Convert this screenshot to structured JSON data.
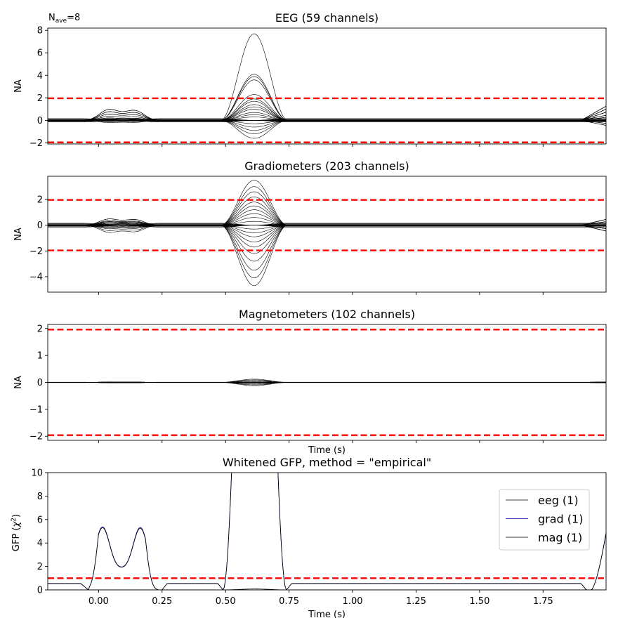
{
  "figure": {
    "nave_label": "N",
    "nave_subscript": "ave",
    "nave_value": "=8"
  },
  "chart_data": [
    {
      "type": "line",
      "title": "EEG (59 channels)",
      "ylabel": "NA",
      "xlim": [
        -0.2,
        1.998
      ],
      "ylim": [
        -2.1,
        8.2
      ],
      "yticks": [
        -2,
        0,
        2,
        4,
        6,
        8
      ],
      "ytick_labels": [
        "−2",
        "0",
        "2",
        "4",
        "6",
        "8"
      ],
      "xticks": [
        0,
        0.25,
        0.5,
        0.75,
        1.0,
        1.25,
        1.5,
        1.75
      ],
      "show_xtick_labels": false,
      "threshold_lines": [
        1.96,
        -1.96
      ],
      "threshold_color": "#ff0000",
      "trace_color": "#000000",
      "bump_peaks": [
        0.02,
        0.16,
        0.61,
        1.998
      ],
      "bump_amplitudes": [
        [
          1.4,
          1.1,
          0.8,
          0.5,
          0.3,
          0.2,
          0.15,
          0.1,
          0.05,
          -0.05,
          -0.1,
          -0.2,
          -0.3
        ],
        [
          7.7,
          4.1,
          3.9,
          3.6,
          2.3,
          1.9,
          1.7,
          1.4,
          1.2,
          1.0,
          0.7,
          0.5,
          0.3,
          -0.3,
          -0.6,
          -0.9,
          -1.2,
          -1.6
        ],
        [
          1.4,
          1.1,
          0.8,
          0.5,
          0.3,
          -0.3,
          -0.5
        ]
      ]
    },
    {
      "type": "line",
      "title": "Gradiometers (203 channels)",
      "ylabel": "NA",
      "xlim": [
        -0.2,
        1.998
      ],
      "ylim": [
        -5.2,
        3.8
      ],
      "yticks": [
        -4,
        -2,
        0,
        2
      ],
      "ytick_labels": [
        "−4",
        "−2",
        "0",
        "2"
      ],
      "xticks": [
        0,
        0.25,
        0.5,
        0.75,
        1.0,
        1.25,
        1.5,
        1.75
      ],
      "show_xtick_labels": false,
      "threshold_lines": [
        1.96,
        -1.96
      ],
      "threshold_color": "#ff0000",
      "trace_color": "#000000",
      "bump_amplitudes": [
        [
          0.7,
          0.5,
          0.4,
          0.3,
          0.2,
          0.1,
          -0.1,
          -0.2,
          -0.3,
          -0.4,
          -0.6,
          -0.8
        ],
        [
          3.5,
          3.0,
          2.6,
          2.2,
          1.8,
          1.5,
          1.2,
          0.9,
          0.6,
          0.3,
          -0.3,
          -0.6,
          -0.9,
          -1.3,
          -1.7,
          -2.2,
          -2.8,
          -3.5,
          -4.1,
          -4.7
        ],
        [
          0.5,
          0.3,
          -0.3,
          -0.5
        ]
      ]
    },
    {
      "type": "line",
      "title": "Magnetometers (102 channels)",
      "ylabel": "NA",
      "xlabel": "Time (s)",
      "xlim": [
        -0.2,
        1.998
      ],
      "ylim": [
        -2.15,
        2.15
      ],
      "yticks": [
        -2,
        -1,
        0,
        1,
        2
      ],
      "ytick_labels": [
        "−2",
        "−1",
        "0",
        "1",
        "2"
      ],
      "xticks": [
        0,
        0.25,
        0.5,
        0.75,
        1.0,
        1.25,
        1.5,
        1.75
      ],
      "show_xtick_labels": false,
      "threshold_lines": [
        1.96,
        -1.96
      ],
      "threshold_color": "#ff0000",
      "trace_color": "#000000",
      "bump_amplitudes": [
        [
          0.02,
          -0.02
        ],
        [
          0.12,
          0.09,
          0.06,
          0.03,
          -0.03,
          -0.06,
          -0.09,
          -0.12
        ],
        [
          0.02,
          -0.02
        ]
      ]
    },
    {
      "type": "line",
      "title": "Whitened GFP, method = \"empirical\"",
      "ylabel_main": "GFP (",
      "ylabel_sym": "χ",
      "ylabel_sup": "2",
      "ylabel_close": ")",
      "xlabel": "Time (s)",
      "xlim": [
        -0.2,
        1.998
      ],
      "ylim": [
        0,
        10
      ],
      "yticks": [
        0,
        2,
        4,
        6,
        8,
        10
      ],
      "ytick_labels": [
        "0",
        "2",
        "4",
        "6",
        "8",
        "10"
      ],
      "xticks": [
        0,
        0.25,
        0.5,
        0.75,
        1.0,
        1.25,
        1.5,
        1.75
      ],
      "xtick_labels": [
        "0.00",
        "0.25",
        "0.50",
        "0.75",
        "1.00",
        "1.25",
        "1.50",
        "1.75"
      ],
      "show_xtick_labels": true,
      "threshold_lines": [
        1.0
      ],
      "threshold_color": "#ff0000",
      "series": [
        {
          "name": "eeg (1)",
          "color": "#000000"
        },
        {
          "name": "grad (1)",
          "color": "#00008b"
        },
        {
          "name": "mag (1)",
          "color": "#000000"
        }
      ],
      "legend_position": "right",
      "gfp_baseline": 0.55,
      "gfp_first_peaks": [
        5.35,
        5.3
      ],
      "gfp_first_dip": 1.8
    }
  ]
}
